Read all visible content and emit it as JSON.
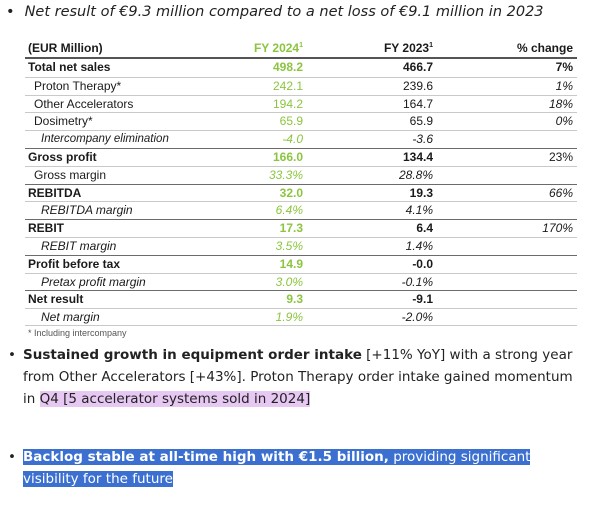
{
  "intro_bullet": "Net result of €9.3 million compared to a net loss of €9.1 million in 2023",
  "table": {
    "headers": {
      "label": "(EUR Million)",
      "fy2024": "FY 2024",
      "fy2023": "FY 2023",
      "pct": "% change",
      "sup": "1"
    },
    "rows": [
      {
        "label": "Total net sales",
        "fy2024": "498.2",
        "fy2023": "466.7",
        "pct": "7%"
      },
      {
        "label": "Proton Therapy*",
        "fy2024": "242.1",
        "fy2023": "239.6",
        "pct": "1%"
      },
      {
        "label": "Other Accelerators",
        "fy2024": "194.2",
        "fy2023": "164.7",
        "pct": "18%"
      },
      {
        "label": "Dosimetry*",
        "fy2024": "65.9",
        "fy2023": "65.9",
        "pct": "0%"
      },
      {
        "label": "Intercompany elimination",
        "fy2024": "-4.0",
        "fy2023": "-3.6",
        "pct": ""
      },
      {
        "label": "Gross profit",
        "fy2024": "166.0",
        "fy2023": "134.4",
        "pct": "23%"
      },
      {
        "label": "Gross margin",
        "fy2024": "33.3%",
        "fy2023": "28.8%",
        "pct": ""
      },
      {
        "label": "REBITDA",
        "fy2024": "32.0",
        "fy2023": "19.3",
        "pct": "66%"
      },
      {
        "label": "REBITDA margin",
        "fy2024": "6.4%",
        "fy2023": "4.1%",
        "pct": ""
      },
      {
        "label": "REBIT",
        "fy2024": "17.3",
        "fy2023": "6.4",
        "pct": "170%"
      },
      {
        "label": "REBIT margin",
        "fy2024": "3.5%",
        "fy2023": "1.4%",
        "pct": ""
      },
      {
        "label": "Profit before tax",
        "fy2024": "14.9",
        "fy2023": "-0.0",
        "pct": ""
      },
      {
        "label": "Pretax profit margin",
        "fy2024": "3.0%",
        "fy2023": "-0.1%",
        "pct": ""
      },
      {
        "label": "Net result",
        "fy2024": "9.3",
        "fy2023": "-9.1",
        "pct": ""
      },
      {
        "label": "Net margin",
        "fy2024": "1.9%",
        "fy2023": "-2.0%",
        "pct": ""
      }
    ],
    "footnote": "* Including intercompany"
  },
  "bullet_orders": {
    "bold": "Sustained growth in equipment order intake",
    "text": " [+11% YoY] with a strong year from Other Accelerators [+43%]. Proton Therapy order intake gained momentum in ",
    "highlighted": "Q4 [5 accelerator systems sold in 2024]"
  },
  "bullet_backlog": {
    "bold": "Backlog stable at all-time high with €1.5 billion,",
    "text": " providing significant visibility for the future"
  },
  "colors": {
    "fy2024_green": "#8bc53f",
    "highlight_purple": "#e6c8f3",
    "highlight_blue": "#3b6fd0"
  }
}
